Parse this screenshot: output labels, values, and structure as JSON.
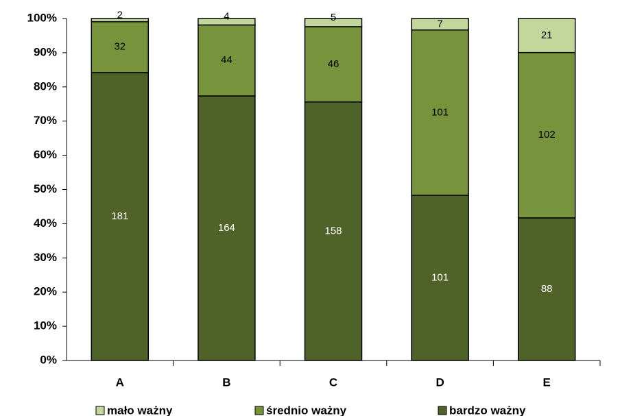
{
  "chart_data": {
    "type": "bar",
    "stacked": "percent",
    "categories": [
      "A",
      "B",
      "C",
      "D",
      "E"
    ],
    "series": [
      {
        "name": "mało ważny",
        "color": "#c3d69b",
        "values": [
          2,
          4,
          5,
          7,
          21
        ]
      },
      {
        "name": "średnio ważny",
        "color": "#77933c",
        "values": [
          32,
          44,
          46,
          101,
          102
        ]
      },
      {
        "name": "bardzo ważny",
        "color": "#4f6228",
        "values": [
          181,
          164,
          158,
          101,
          88
        ]
      }
    ],
    "ylim": [
      0,
      100
    ],
    "yticks": [
      {
        "value": 0,
        "label": "0%"
      },
      {
        "value": 10,
        "label": "10%"
      },
      {
        "value": 20,
        "label": "20%"
      },
      {
        "value": 30,
        "label": "30%"
      },
      {
        "value": 40,
        "label": "40%"
      },
      {
        "value": 50,
        "label": "50%"
      },
      {
        "value": 60,
        "label": "60%"
      },
      {
        "value": 70,
        "label": "70%"
      },
      {
        "value": 80,
        "label": "80%"
      },
      {
        "value": 90,
        "label": "90%"
      },
      {
        "value": 100,
        "label": "100%"
      }
    ],
    "grid": false,
    "legend": "bottom"
  }
}
